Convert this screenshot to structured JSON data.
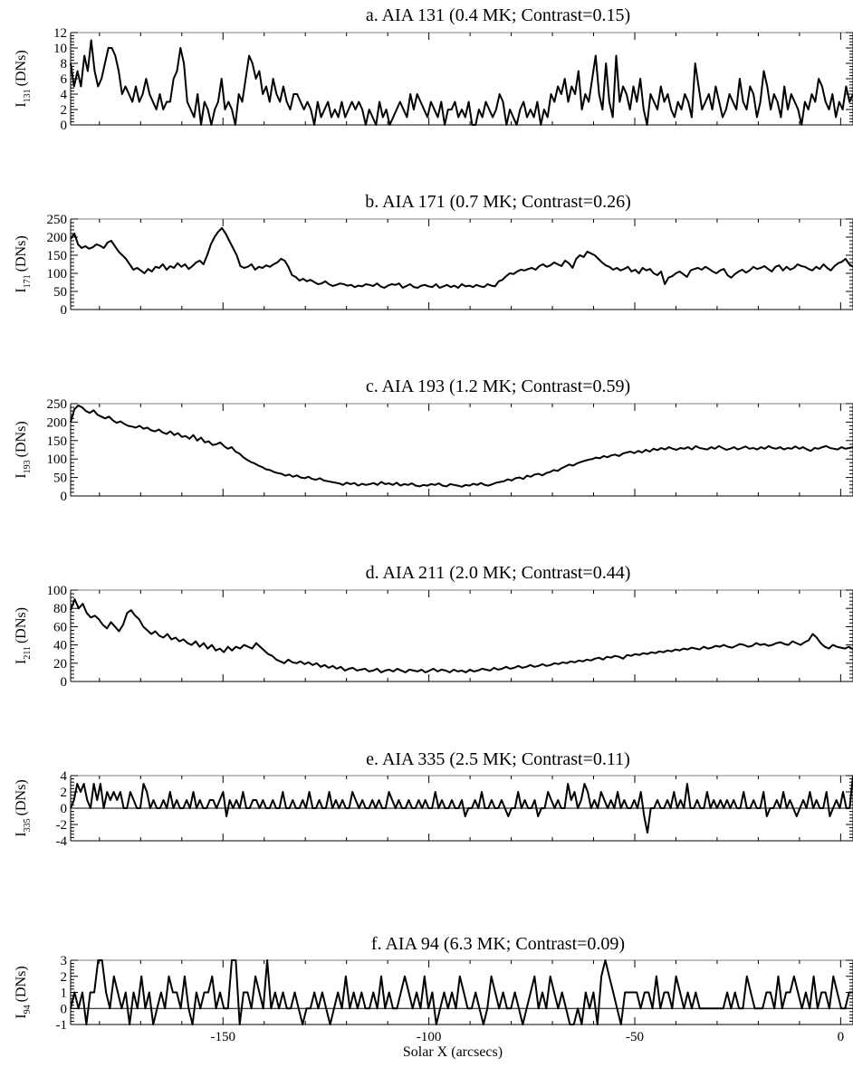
{
  "chart_data": [
    {
      "type": "line",
      "title": "a. AIA 131 (0.4 MK; Contrast=0.15)",
      "ylabel_main": "I",
      "ylabel_sub": "131",
      "ylabel_unit": "(DNs)",
      "ylim": [
        0,
        12
      ],
      "yticks": [
        0,
        2,
        4,
        6,
        8,
        10,
        12
      ],
      "values": [
        8,
        5,
        7,
        5,
        9,
        7,
        11,
        7,
        5,
        6,
        8,
        10,
        10,
        9,
        7,
        4,
        5,
        4,
        3,
        5,
        3,
        4,
        6,
        4,
        3,
        2,
        4,
        2,
        3,
        3,
        6,
        7,
        10,
        8,
        3,
        2,
        1,
        4,
        0,
        3,
        2,
        0,
        2,
        3,
        6,
        2,
        3,
        2,
        0,
        4,
        3,
        6,
        9,
        8,
        6,
        7,
        4,
        5,
        3,
        6,
        4,
        3,
        5,
        3,
        2,
        4,
        4,
        3,
        2,
        3,
        2,
        0,
        3,
        1,
        2,
        3,
        1,
        2,
        1,
        3,
        1,
        2,
        3,
        2,
        3,
        2,
        0,
        2,
        1,
        0,
        3,
        1,
        2,
        0,
        1,
        2,
        3,
        2,
        1,
        4,
        2,
        4,
        3,
        2,
        1,
        3,
        2,
        1,
        3,
        0,
        2,
        2,
        3,
        1,
        2,
        1,
        3,
        0,
        0,
        2,
        1,
        3,
        2,
        1,
        2,
        4,
        3,
        0,
        2,
        1,
        0,
        2,
        3,
        1,
        2,
        1,
        3,
        0,
        2,
        1,
        4,
        3,
        5,
        4,
        6,
        3,
        5,
        4,
        7,
        2,
        4,
        3,
        6,
        9,
        4,
        2,
        8,
        3,
        1,
        9,
        3,
        5,
        4,
        2,
        5,
        3,
        6,
        2,
        0,
        4,
        3,
        2,
        5,
        3,
        4,
        2,
        1,
        3,
        2,
        4,
        3,
        1,
        8,
        5,
        2,
        3,
        4,
        2,
        5,
        3,
        1,
        2,
        4,
        3,
        2,
        6,
        3,
        2,
        5,
        4,
        1,
        3,
        7,
        5,
        2,
        4,
        3,
        1,
        5,
        2,
        4,
        3,
        2,
        0,
        3,
        2,
        4,
        3,
        6,
        5,
        3,
        2,
        4,
        1,
        3,
        2,
        5,
        3,
        4
      ],
      "xlim": [
        -187,
        3
      ],
      "xticks": [
        -150,
        -100,
        -50,
        0
      ],
      "xticklabels": []
    },
    {
      "type": "line",
      "title": "b. AIA 171 (0.7 MK; Contrast=0.26)",
      "ylabel_main": "I",
      "ylabel_sub": "171",
      "ylabel_unit": "(DNs)",
      "ylim": [
        0,
        250
      ],
      "yticks": [
        0,
        50,
        100,
        150,
        200,
        250
      ],
      "values": [
        195,
        210,
        180,
        170,
        175,
        168,
        172,
        180,
        176,
        170,
        185,
        190,
        175,
        160,
        150,
        140,
        125,
        110,
        115,
        108,
        100,
        112,
        105,
        118,
        115,
        125,
        110,
        120,
        115,
        128,
        118,
        125,
        112,
        120,
        130,
        135,
        125,
        150,
        180,
        200,
        215,
        225,
        210,
        190,
        170,
        150,
        120,
        115,
        118,
        125,
        110,
        118,
        115,
        122,
        118,
        125,
        130,
        140,
        135,
        118,
        95,
        90,
        80,
        85,
        78,
        82,
        76,
        70,
        72,
        78,
        70,
        65,
        68,
        72,
        70,
        66,
        68,
        62,
        66,
        64,
        70,
        68,
        65,
        72,
        64,
        60,
        66,
        70,
        68,
        72,
        60,
        65,
        70,
        62,
        60,
        66,
        68,
        64,
        62,
        70,
        60,
        64,
        68,
        62,
        66,
        60,
        70,
        64,
        66,
        62,
        68,
        64,
        62,
        70,
        66,
        64,
        78,
        82,
        92,
        100,
        98,
        105,
        110,
        108,
        112,
        115,
        110,
        120,
        125,
        118,
        122,
        130,
        125,
        120,
        135,
        128,
        115,
        140,
        150,
        145,
        160,
        155,
        150,
        140,
        130,
        122,
        118,
        110,
        115,
        108,
        112,
        118,
        105,
        110,
        100,
        115,
        108,
        112,
        100,
        95,
        105,
        70,
        88,
        92,
        100,
        105,
        98,
        90,
        108,
        112,
        115,
        110,
        118,
        112,
        105,
        100,
        108,
        112,
        95,
        88,
        98,
        105,
        110,
        102,
        108,
        118,
        112,
        115,
        120,
        112,
        105,
        118,
        122,
        108,
        118,
        110,
        115,
        125,
        120,
        118,
        112,
        108,
        118,
        112,
        125,
        115,
        108,
        120,
        128,
        132,
        140,
        125,
        118
      ]
    },
    {
      "type": "line",
      "title": "c. AIA 193 (1.2 MK; Contrast=0.59)",
      "ylabel_main": "I",
      "ylabel_sub": "193",
      "ylabel_unit": "(DNs)",
      "ylim": [
        0,
        250
      ],
      "yticks": [
        0,
        50,
        100,
        150,
        200,
        250
      ],
      "values": [
        200,
        235,
        245,
        240,
        230,
        225,
        232,
        220,
        215,
        210,
        215,
        205,
        198,
        202,
        195,
        190,
        188,
        185,
        190,
        182,
        185,
        178,
        175,
        180,
        172,
        168,
        175,
        165,
        170,
        160,
        162,
        155,
        165,
        150,
        158,
        145,
        148,
        138,
        140,
        145,
        135,
        128,
        132,
        120,
        115,
        105,
        98,
        92,
        88,
        82,
        78,
        72,
        70,
        65,
        62,
        60,
        55,
        58,
        52,
        56,
        50,
        48,
        52,
        46,
        44,
        48,
        42,
        40,
        38,
        36,
        34,
        30,
        36,
        32,
        35,
        28,
        33,
        30,
        32,
        35,
        30,
        38,
        32,
        34,
        30,
        36,
        28,
        32,
        30,
        34,
        28,
        26,
        30,
        28,
        32,
        30,
        34,
        28,
        26,
        32,
        30,
        28,
        25,
        30,
        28,
        33,
        30,
        35,
        30,
        28,
        32,
        36,
        38,
        40,
        45,
        42,
        48,
        50,
        46,
        55,
        52,
        58,
        60,
        56,
        62,
        65,
        70,
        68,
        75,
        80,
        85,
        82,
        88,
        92,
        95,
        98,
        100,
        104,
        102,
        108,
        105,
        110,
        112,
        108,
        115,
        118,
        120,
        116,
        122,
        118,
        125,
        120,
        128,
        124,
        130,
        126,
        132,
        128,
        125,
        130,
        128,
        132,
        126,
        135,
        130,
        128,
        126,
        132,
        128,
        135,
        130,
        125,
        128,
        132,
        126,
        130,
        134,
        128,
        130,
        126,
        132,
        128,
        135,
        130,
        128,
        132,
        126,
        130,
        128,
        134,
        128,
        132,
        126,
        122,
        130,
        128,
        132,
        135,
        130,
        128,
        126,
        132,
        128,
        130,
        132
      ]
    },
    {
      "type": "line",
      "title": "d. AIA 211 (2.0 MK; Contrast=0.44)",
      "ylabel_main": "I",
      "ylabel_sub": "211",
      "ylabel_unit": "(DNs)",
      "ylim": [
        0,
        100
      ],
      "yticks": [
        0,
        20,
        40,
        60,
        80,
        100
      ],
      "values": [
        78,
        90,
        80,
        85,
        75,
        70,
        72,
        68,
        62,
        58,
        65,
        60,
        55,
        62,
        75,
        78,
        72,
        68,
        60,
        56,
        52,
        55,
        50,
        48,
        52,
        46,
        48,
        44,
        46,
        42,
        40,
        44,
        38,
        42,
        36,
        40,
        34,
        36,
        32,
        38,
        34,
        38,
        36,
        40,
        38,
        36,
        42,
        38,
        34,
        30,
        28,
        24,
        22,
        20,
        24,
        21,
        20,
        22,
        19,
        21,
        18,
        20,
        16,
        18,
        15,
        17,
        14,
        16,
        12,
        14,
        15,
        12,
        13,
        14,
        11,
        12,
        14,
        10,
        12,
        13,
        11,
        14,
        12,
        10,
        13,
        12,
        11,
        13,
        10,
        12,
        14,
        11,
        13,
        12,
        10,
        13,
        11,
        12,
        10,
        13,
        11,
        12,
        14,
        13,
        12,
        15,
        13,
        14,
        16,
        14,
        15,
        17,
        15,
        16,
        18,
        16,
        17,
        19,
        17,
        18,
        20,
        19,
        21,
        20,
        22,
        21,
        23,
        22,
        24,
        23,
        25,
        26,
        24,
        27,
        26,
        28,
        27,
        25,
        29,
        28,
        30,
        29,
        31,
        30,
        32,
        31,
        33,
        32,
        34,
        33,
        35,
        34,
        36,
        35,
        37,
        36,
        35,
        38,
        36,
        37,
        39,
        38,
        40,
        38,
        37,
        39,
        41,
        40,
        38,
        39,
        42,
        40,
        41,
        39,
        40,
        42,
        43,
        41,
        40,
        44,
        42,
        40,
        43,
        45,
        52,
        48,
        42,
        38,
        36,
        40,
        38,
        37,
        36,
        38,
        35
      ]
    },
    {
      "type": "line",
      "title": "e. AIA 335 (2.5 MK; Contrast=0.11)",
      "ylabel_main": "I",
      "ylabel_sub": "335",
      "ylabel_unit": "(DNs)",
      "ylim": [
        -4,
        4
      ],
      "yticks": [
        -4,
        -2,
        0,
        2,
        4
      ],
      "values": [
        0,
        1,
        3,
        2,
        3,
        1,
        0,
        3,
        1,
        3,
        0,
        2,
        1,
        2,
        1,
        2,
        0,
        0,
        2,
        1,
        0,
        0,
        3,
        2,
        0,
        1,
        0,
        0,
        1,
        0,
        2,
        0,
        1,
        0,
        0,
        1,
        0,
        2,
        0,
        1,
        0,
        0,
        1,
        1,
        0,
        1,
        2,
        -1,
        1,
        0,
        1,
        0,
        2,
        0,
        0,
        1,
        1,
        0,
        1,
        0,
        0,
        1,
        0,
        0,
        2,
        0,
        0,
        1,
        0,
        0,
        1,
        0,
        2,
        0,
        0,
        1,
        0,
        0,
        2,
        0,
        1,
        0,
        1,
        0,
        0,
        2,
        1,
        0,
        1,
        0,
        0,
        1,
        0,
        1,
        0,
        0,
        2,
        1,
        0,
        1,
        0,
        0,
        1,
        0,
        0,
        1,
        0,
        1,
        0,
        0,
        2,
        0,
        1,
        0,
        0,
        1,
        0,
        0,
        1,
        -1,
        0,
        0,
        1,
        0,
        2,
        0,
        0,
        1,
        0,
        0,
        1,
        0,
        -1,
        0,
        0,
        2,
        0,
        1,
        0,
        0,
        1,
        -1,
        0,
        0,
        2,
        1,
        0,
        1,
        0,
        0,
        3,
        1,
        2,
        0,
        1,
        3,
        2,
        0,
        1,
        0,
        2,
        1,
        0,
        1,
        0,
        2,
        0,
        1,
        0,
        0,
        1,
        0,
        2,
        -1,
        -3,
        0,
        0,
        1,
        0,
        0,
        1,
        0,
        2,
        0,
        1,
        0,
        3,
        0,
        0,
        1,
        0,
        0,
        2,
        0,
        1,
        0,
        1,
        0,
        1,
        0,
        1,
        0,
        0,
        2,
        0,
        0,
        1,
        0,
        0,
        2,
        -1,
        0,
        0,
        1,
        0,
        2,
        0,
        1,
        0,
        -1,
        0,
        1,
        0,
        2,
        0,
        1,
        0,
        0,
        2,
        -1,
        0,
        1,
        0,
        2,
        0,
        0,
        4
      ],
      "xticks": [
        -150,
        -100,
        -50,
        0
      ],
      "xticklabels": []
    },
    {
      "type": "line",
      "title": "f. AIA 94 (6.3 MK; Contrast=0.09)",
      "ylabel_main": "I",
      "ylabel_sub": "94",
      "ylabel_unit": "(DNs)",
      "ylim": [
        -1,
        3
      ],
      "yticks": [
        -1,
        0,
        1,
        2,
        3
      ],
      "values": [
        0,
        1,
        0,
        1,
        -1,
        1,
        1,
        3,
        3,
        1,
        0,
        2,
        1,
        0,
        1,
        -1,
        1,
        0,
        2,
        0,
        1,
        -1,
        0,
        1,
        0,
        2,
        1,
        1,
        0,
        2,
        0,
        -1,
        1,
        0,
        1,
        1,
        2,
        0,
        1,
        0,
        0,
        3,
        3,
        -1,
        1,
        1,
        0,
        2,
        1,
        0,
        3,
        0,
        1,
        0,
        1,
        0,
        0,
        1,
        0,
        -1,
        0,
        0,
        1,
        0,
        1,
        0,
        -1,
        0,
        1,
        0,
        2,
        0,
        1,
        0,
        1,
        0,
        0,
        1,
        0,
        2,
        0,
        1,
        0,
        0,
        1,
        2,
        1,
        0,
        1,
        0,
        2,
        0,
        1,
        -1,
        0,
        1,
        0,
        1,
        0,
        2,
        1,
        0,
        0,
        1,
        0,
        -1,
        0,
        2,
        1,
        0,
        1,
        0,
        0,
        1,
        0,
        -1,
        0,
        1,
        2,
        0,
        1,
        0,
        2,
        1,
        0,
        1,
        0,
        -1,
        -1,
        0,
        -1,
        1,
        0,
        1,
        -1,
        2,
        3,
        2,
        1,
        0,
        -1,
        1,
        1,
        1,
        1,
        0,
        1,
        1,
        0,
        2,
        0,
        1,
        1,
        0,
        2,
        1,
        0,
        1,
        0,
        1,
        0,
        0,
        0,
        0,
        0,
        0,
        0,
        1,
        0,
        1,
        0,
        0,
        2,
        1,
        0,
        0,
        0,
        1,
        1,
        0,
        2,
        0,
        1,
        1,
        2,
        1,
        0,
        1,
        0,
        2,
        0,
        1,
        1,
        0,
        2,
        1,
        0,
        0,
        1,
        1
      ],
      "xlim": [
        -187,
        3
      ],
      "xticks": [
        -150,
        -100,
        -50,
        0
      ],
      "xticklabels": [
        "-150",
        "-100",
        "-50",
        "0"
      ],
      "xlabel": "Solar X (arcsecs)"
    }
  ]
}
